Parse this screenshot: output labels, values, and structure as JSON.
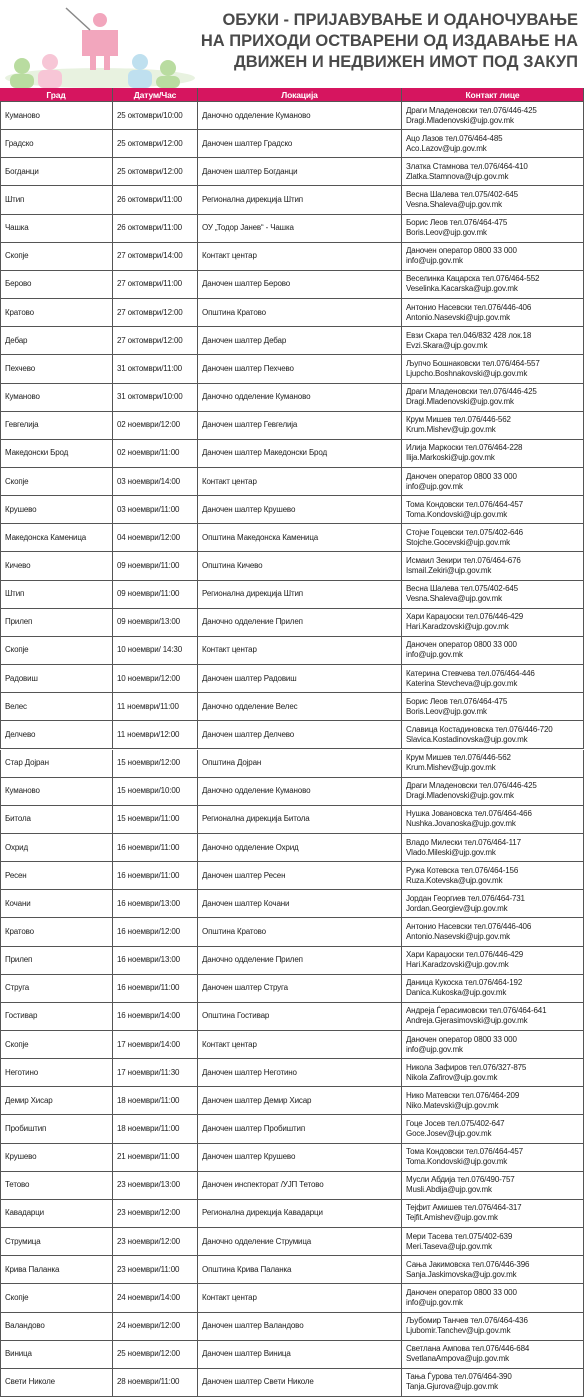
{
  "header": {
    "title": [
      "ОБУКИ - ПРИЈАВУВАЊЕ И ОДАНОЧУВАЊЕ",
      "НА ПРИХОДИ ОСТВАРЕНИ ОД ИЗДАВАЊЕ НА",
      "ДВИЖЕН И НЕДВИЖЕН ИМОТ ПОД ЗАКУП"
    ]
  },
  "table": {
    "columns": [
      "Град",
      "Датум/Час",
      "Локација",
      "Контакт лице"
    ],
    "rows": [
      [
        "Куманово",
        "25 октомври/10:00",
        "Даночно одделение Куманово",
        "Драги Младеновски тел.076/446-425",
        "Dragi.Mladenovski@ujp.gov.mk"
      ],
      [
        "Градско",
        "25 октомври/12:00",
        "Даночен шалтер Градско",
        "Ацо Лазов тел.076/464-485",
        "Aco.Lazov@ujp.gov.mk"
      ],
      [
        "Богданци",
        "25 октомври/12:00",
        "Даночен шалтер Богданци",
        "Златка Стамнова тел.076/464-410",
        "Zlatka.Stamnova@ujp.gov.mk"
      ],
      [
        "Штип",
        "26 октомври/11:00",
        "Регионална дирекција Штип",
        "Весна Шалева тел.075/402-645",
        "Vesna.Shaleva@ujp.gov.mk"
      ],
      [
        "Чашка",
        "26 октомври/11:00",
        "ОУ „Тодор Јанев“ - Чашка",
        "Борис Леов тел.076/464-475",
        "Boris.Leov@ujp.gov.mk"
      ],
      [
        "Скопје",
        "27 октомври/14:00",
        "Контакт центар",
        "Даночен оператор 0800 33 000",
        "info@ujp.gov.mk"
      ],
      [
        "Берово",
        "27 октомври/11:00",
        "Даночен шалтер Берово",
        "Веселинка Кацарска тел.076/464-552",
        "Veselinka.Kacarska@ujp.gov.mk"
      ],
      [
        "Кратово",
        "27 октомври/12:00",
        "Општина Кратово",
        "Антонио Насевски тел.076/446-406",
        "Antonio.Nasevski@ujp.gov.mk"
      ],
      [
        "Дебар",
        "27 октомври/12:00",
        "Даночен шалтер Дебар",
        "Евзи Скара тел.046/832 428 лок.18",
        "Evzi.Skara@ujp.gov.mk"
      ],
      [
        "Пехчево",
        "31 октомври/11:00",
        "Даночен шалтер Пехчево",
        "Љупчо Бошнаковски тел.076/464-557",
        "Ljupcho.Boshnakovski@ujp.gov.mk"
      ],
      [
        "Куманово",
        "31 октомври/10:00",
        "Даночно одделение Куманово",
        "Драги Младеновски тел.076/446-425",
        "Dragi.Mladenovski@ujp.gov.mk"
      ],
      [
        "Гевгелија",
        "02 ноември/12:00",
        "Даночен шалтер Гевгелија",
        "Крум Мишев тел.076/446-562",
        "Krum.Mishev@ujp.gov.mk"
      ],
      [
        "Македонски Брод",
        "02 ноември/11:00",
        "Даночен шалтер Македонски Брод",
        "Илија Маркоски тел.076/464-228",
        "Ilija.Markoski@ujp.gov.mk"
      ],
      [
        "Скопје",
        "03 ноември/14:00",
        "Контакт центар",
        "Даночен оператор 0800 33 000",
        "info@ujp.gov.mk"
      ],
      [
        "Крушево",
        "03 ноември/11:00",
        "Даночен шалтер Крушево",
        "Тома Кондовски тел.076/464-457",
        "Toma.Kondovski@ujp.gov.mk"
      ],
      [
        "Македонска Каменица",
        "04 ноември/12:00",
        "Општина Македонска Каменица",
        "Стојче Гоцевски тел.075/402-646",
        "Stojche.Gocevski@ujp.gov.mk"
      ],
      [
        "Кичево",
        "09 ноември/11:00",
        "Општина Кичево",
        "Исмаил Зекири тел.076/464-676",
        "Ismail.Zekiri@ujp.gov.mk"
      ],
      [
        "Штип",
        "09 ноември/11:00",
        "Регионална дирекција Штип",
        "Весна Шалева тел.075/402-645",
        "Vesna.Shaleva@ujp.gov.mk"
      ],
      [
        "Прилеп",
        "09 ноември/13:00",
        "Даночно одделение Прилеп",
        "Хари Караџоски тел.076/446-429",
        "Hari.Karadzovski@ujp.gov.mk"
      ],
      [
        "Скопје",
        "10 ноември/ 14:30",
        "Контакт центар",
        "Даночен оператор 0800 33 000",
        "info@ujp.gov.mk"
      ],
      [
        "Радовиш",
        "10 ноември/12:00",
        "Даночен шалтер Радовиш",
        "Катерина Стевчева тел.076/464-446",
        "Katerina Stevcheva@ujp.gov.mk"
      ],
      [
        "Велес",
        "11 ноември/11:00",
        "Даночно одделение Велес",
        "Борис Леов тел.076/464-475",
        "Boris.Leov@ujp.gov.mk"
      ],
      [
        "Делчево",
        "11 ноември/12:00",
        "Даночен шалтер Делчево",
        "Славица Костадиновска тел.076/446-720",
        "Slavica.Kostadinovska@ujp.gov.mk"
      ],
      [
        "Стар Дојран",
        "15 ноември/12:00",
        "Општина Дојран",
        "Крум Мишев тел.076/446-562",
        "Krum.Mishev@ujp.gov.mk"
      ],
      [
        "Куманово",
        "15 ноември/10:00",
        "Даночно одделение Куманово",
        "Драги Младеновски тел.076/446-425",
        "Dragi.Mladenovski@ujp.gov.mk"
      ],
      [
        "Битола",
        "15 ноември/11:00",
        "Регионална дирекција Битола",
        "Нушка Јовановска тел.076/464-466",
        "Nushka.Jovanoska@ujp.gov.mk"
      ],
      [
        "Охрид",
        "16 ноември/11:00",
        "Даночно одделение Охрид",
        "Владо Милески тел.076/464-117",
        "Vlado.Mileski@ujp.gov.mk"
      ],
      [
        "Ресен",
        "16 ноември/11:00",
        "Даночен шалтер Ресен",
        "Ружа Котевска тел.076/464-156",
        "Ruza.Kotevska@ujp.gov.mk"
      ],
      [
        "Кочани",
        "16 ноември/13:00",
        "Даночен шалтер Кочани",
        "Јордан Георгиев тел.076/464-731",
        "Jordan.Georgiev@ujp.gov.mk"
      ],
      [
        "Кратово",
        "16 ноември/12:00",
        "Општина Кратово",
        "Антонио Насевски тел.076/446-406",
        "Antonio.Nasevski@ujp.gov.mk"
      ],
      [
        "Прилеп",
        "16 ноември/13:00",
        "Даночно одделение Прилеп",
        "Хари Караџоски тел.076/446-429",
        "Hari.Karadzovski@ujp.gov.mk"
      ],
      [
        "Струга",
        "16 ноември/11:00",
        "Даночен шалтер Струга",
        "Даница Кукоска тел.076/464-192",
        "Danica.Kukoska@ujp.gov.mk"
      ],
      [
        "Гостивар",
        "16 ноември/14:00",
        "Општина Гостивар",
        "Андреја Ѓерасимовски тел.076/464-641",
        "Andreja.Gjerasimovski@ujp.gov.mk"
      ],
      [
        "Скопје",
        "17 ноември/14:00",
        "Контакт центар",
        "Даночен оператор 0800 33 000",
        "info@ujp.gov.mk"
      ],
      [
        "Неготино",
        "17 ноември/11:30",
        "Даночен шалтер Неготино",
        "Никола Зафиров тел.076/327-875",
        "Nikola Zafirov@ujp.gov.mk"
      ],
      [
        "Демир Хисар",
        "18 ноември/11:00",
        "Даночен шалтер Демир Хисар",
        "Нико Матевски тел.076/464-209",
        "Niko.Matevski@ujp.gov.mk"
      ],
      [
        "Пробиштип",
        "18 ноември/11:00",
        "Даночен шалтер Пробиштип",
        "Гоце Јосев тел.075/402-647",
        "Goce.Josev@ujp.gov.mk"
      ],
      [
        "Крушево",
        "21 ноември/11:00",
        "Даночен шалтер Крушево",
        "Тома Кондовски тел.076/464-457",
        "Toma.Kondovski@ujp.gov.mk"
      ],
      [
        "Тетово",
        "23 ноември/13:00",
        "Даночен инспекторат /УЈП Тетово",
        "Мусли Абдија тел.076/490-757",
        "Musli.Abdija@ujp.gov.mk"
      ],
      [
        "Кавадарци",
        "23 ноември/12:00",
        "Регионална дирекција Кавадарци",
        "Тејфит Амишев тел.076/464-317",
        "Tejfit.Amishev@ujp.gov.mk"
      ],
      [
        "Струмица",
        "23 ноември/12:00",
        "Даночно одделение Струмица",
        "Мери Тасева тел.075/402-639",
        "Meri.Taseva@ujp.gov.mk"
      ],
      [
        "Крива Паланка",
        "23 ноември/11:00",
        "Општина Крива Паланка",
        "Сања Јакимовска тел.076/446-396",
        "Sanja.Jaskimovska@ujp.gov.mk"
      ],
      [
        "Скопје",
        "24 ноември/14:00",
        "Контакт центар",
        "Даночен оператор 0800 33 000",
        "info@ujp.gov.mk"
      ],
      [
        "Валандово",
        "24 ноември/12:00",
        "Даночен шалтер Валандово",
        "Љубомир Танчев тел.076/464-436",
        "Ljubomir.Tanchev@ujp.gov.mk"
      ],
      [
        "Виница",
        "25 ноември/12:00",
        "Даночен шалтер Виница",
        "Светлана Ампова тел.076/446-684",
        "SvetlanaAmpova@ujp.gov.mk"
      ],
      [
        "Свети Николе",
        "28 ноември/11:00",
        "Даночен шалтер Свети Николе",
        "Тања Ѓурова тел.076/464-390",
        "Tanja.Gjurova@ujp.gov.mk"
      ]
    ]
  }
}
